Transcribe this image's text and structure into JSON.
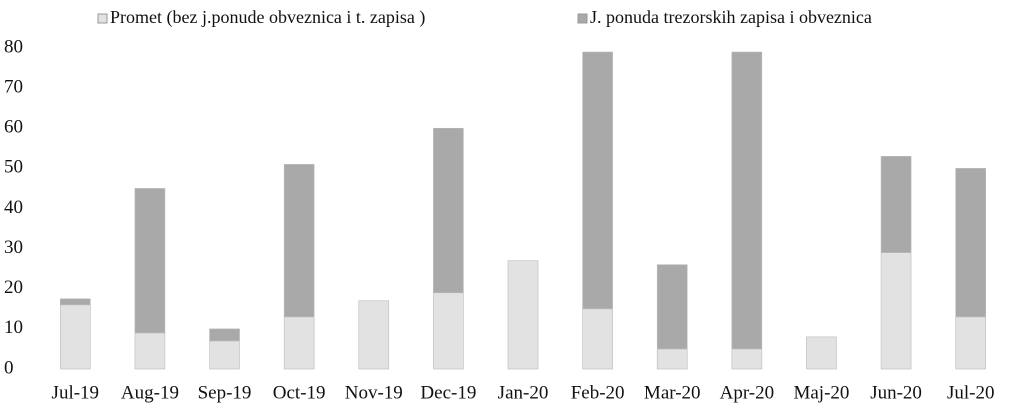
{
  "chart_data": {
    "type": "stacked_bar",
    "categories": [
      "Jul-19",
      "Aug-19",
      "Sep-19",
      "Oct-19",
      "Nov-19",
      "Dec-19",
      "Jan-20",
      "Feb-20",
      "Mar-20",
      "Apr-20",
      "Maj-20",
      "Jun-20",
      "Jul-20"
    ],
    "series": [
      {
        "name": "Promet (bez j.ponude obveznica i t. zapisa )",
        "color": "#e2e2e2",
        "values": [
          16,
          9,
          7,
          13,
          17,
          19,
          27,
          15,
          5,
          5,
          8,
          29,
          13
        ]
      },
      {
        "name": "J. ponuda  trezorskih zapisa i obveznica",
        "color": "#a9a9a9",
        "values": [
          1.5,
          36,
          3,
          38,
          0,
          41,
          0,
          64,
          21,
          74,
          0,
          24,
          37
        ]
      }
    ],
    "ylim": [
      0,
      80
    ],
    "yticks": [
      0,
      10,
      20,
      30,
      40,
      50,
      60,
      70,
      80
    ],
    "legend": "top"
  }
}
